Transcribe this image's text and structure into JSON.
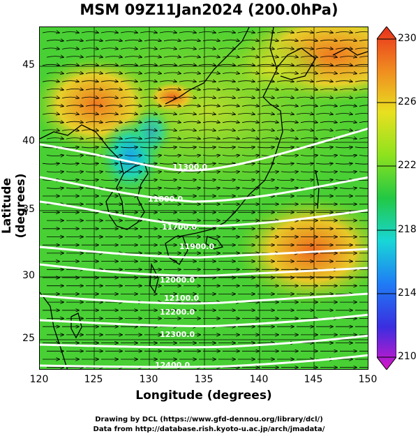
{
  "title": "MSM 09Z11Jan2024 (200.0hPa)",
  "x_axis": {
    "label": "Longitude (degrees)",
    "ticks": [
      "120",
      "125",
      "130",
      "135",
      "140",
      "145",
      "150"
    ]
  },
  "y_axis": {
    "label": "Latitude  (degrees)",
    "ticks": [
      "25",
      "30",
      "35",
      "40",
      "45"
    ]
  },
  "colorbar": {
    "ticks": [
      "210",
      "214",
      "218",
      "222",
      "226",
      "230"
    ],
    "colors": [
      "#d816c8",
      "#3a2ee0",
      "#1f7cf5",
      "#18d6d6",
      "#22c844",
      "#8ee21e",
      "#e8e020",
      "#f08a20",
      "#e8301c"
    ]
  },
  "contours": {
    "labels": [
      "11300.0",
      "11800.0",
      "11700.0",
      "11900.0",
      "12000.0",
      "12100.0",
      "12200.0",
      "12300.0",
      "12400.0"
    ]
  },
  "footer": {
    "line1": "Drawing by DCL (https://www.gfd-dennou.org/library/dcl/)",
    "line2": "Data from http://database.rish.kyoto-u.ac.jp/arch/jmadata/"
  }
}
